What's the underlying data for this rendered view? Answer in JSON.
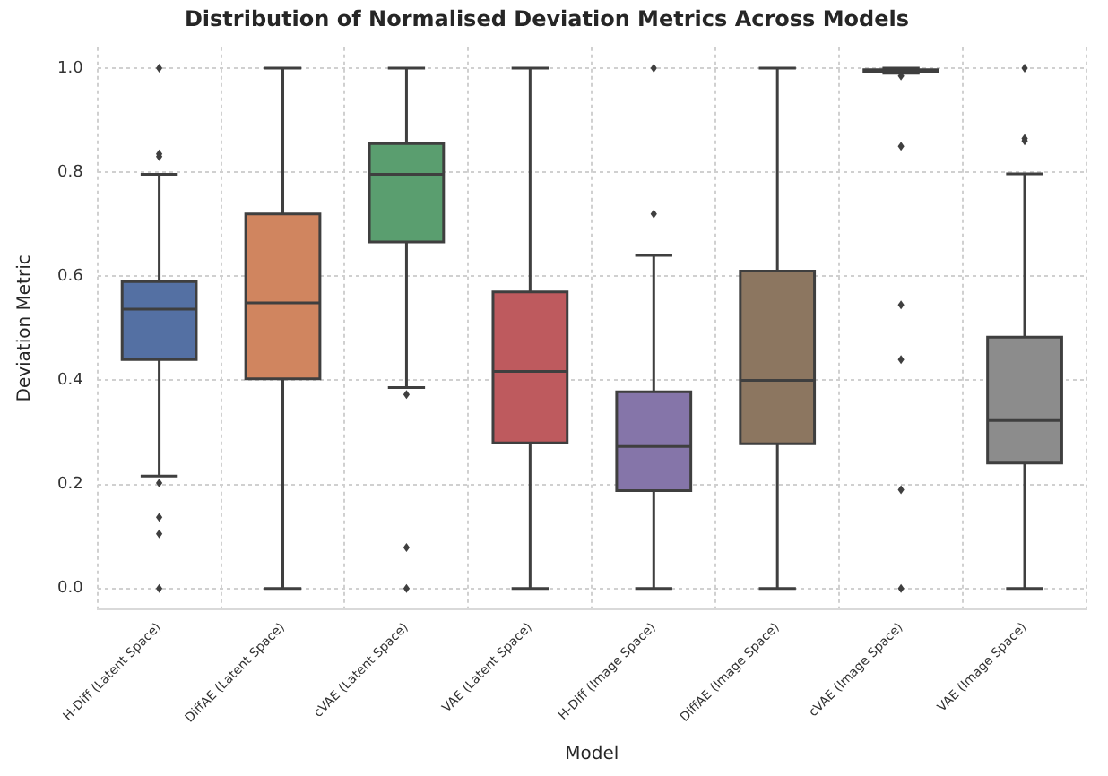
{
  "chart_data": {
    "type": "box",
    "title": "Distribution of Normalised Deviation Metrics Across Models",
    "xlabel": "Model",
    "ylabel": "Deviation Metric",
    "categories": [
      "H-Diff (Latent Space)",
      "DiffAE (Latent Space)",
      "cVAE (Latent Space)",
      "VAE (Latent Space)",
      "H-Diff (Image Space)",
      "DiffAE (Image Space)",
      "cVAE (Image Space)",
      "VAE (Image Space)"
    ],
    "colors": [
      "#5470a3",
      "#d0855f",
      "#5a9e6f",
      "#be5a5e",
      "#8575a9",
      "#8c7660",
      "#5a9e6f",
      "#8c8c8c"
    ],
    "boxes": [
      {
        "low": 0.216,
        "q1": 0.44,
        "median": 0.537,
        "q3": 0.59,
        "high": 0.796,
        "outliers": [
          1.0,
          0.835,
          0.83,
          0.203,
          0.137,
          0.105,
          0.0
        ]
      },
      {
        "low": 0.0,
        "q1": 0.403,
        "median": 0.549,
        "q3": 0.72,
        "high": 1.0
      },
      {
        "low": 0.386,
        "q1": 0.666,
        "median": 0.796,
        "q3": 0.855,
        "high": 1.0,
        "outliers": [
          0.373,
          0.079,
          0.0
        ]
      },
      {
        "low": 0.0,
        "q1": 0.28,
        "median": 0.417,
        "q3": 0.57,
        "high": 1.0
      },
      {
        "low": 0.0,
        "q1": 0.188,
        "median": 0.273,
        "q3": 0.378,
        "high": 0.64,
        "outliers": [
          1.0,
          0.72
        ]
      },
      {
        "low": 0.0,
        "q1": 0.278,
        "median": 0.4,
        "q3": 0.61,
        "high": 1.0
      },
      {
        "low": 0.99,
        "q1": 0.993,
        "median": 0.995,
        "q3": 0.997,
        "high": 1.0,
        "outliers": [
          0.985,
          0.85,
          0.545,
          0.44,
          0.19,
          0.0
        ]
      },
      {
        "low": 0.0,
        "q1": 0.241,
        "median": 0.323,
        "q3": 0.483,
        "high": 0.797,
        "outliers": [
          1.0,
          0.865,
          0.86
        ]
      }
    ],
    "ylim": [
      -0.04,
      1.04
    ],
    "yticks": [
      {
        "value": 0,
        "label": "0.0"
      },
      0.2,
      0.4,
      0.6,
      0.8,
      {
        "value": 1,
        "label": "1.0"
      }
    ],
    "grid": true,
    "legend": false
  }
}
